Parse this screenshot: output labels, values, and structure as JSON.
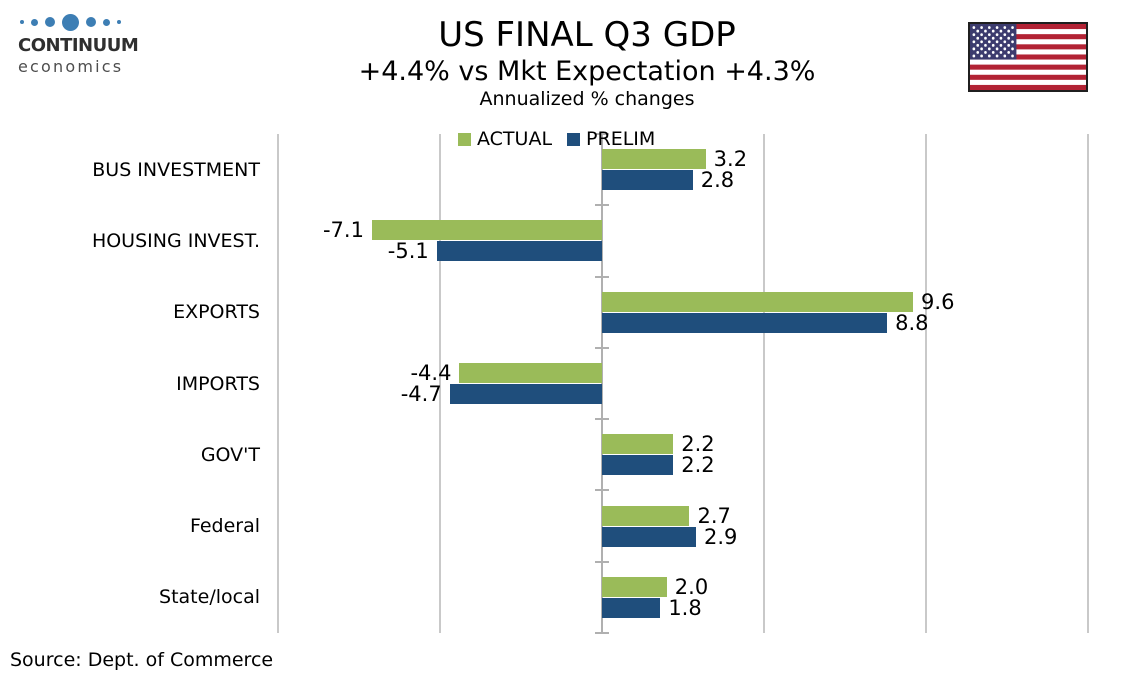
{
  "logo": {
    "brand": "CONTINUUM",
    "subtitle": "economics",
    "dot_color": "#3D7EB4"
  },
  "header": {
    "title": "US FINAL Q3 GDP",
    "subtitle": "+4.4% vs Mkt Expectation +4.3%",
    "note": "Annualized % changes"
  },
  "flag": {
    "name": "us-flag",
    "red": "#B22234",
    "canton_blue": "#3C3B6E",
    "white": "#FFFFFF"
  },
  "source": "Source: Dept. of Commerce",
  "chart_data": {
    "type": "bar",
    "orientation": "horizontal",
    "categories": [
      "BUS INVESTMENT",
      "HOUSING INVEST.",
      "EXPORTS",
      "IMPORTS",
      "GOV'T",
      "Federal",
      "State/local"
    ],
    "series": [
      {
        "name": "ACTUAL",
        "color": "#9ABB59",
        "values": [
          3.2,
          -7.1,
          9.6,
          -4.4,
          2.2,
          2.7,
          2.0
        ]
      },
      {
        "name": "PRELIM",
        "color": "#1F4E7C",
        "values": [
          2.8,
          -5.1,
          8.8,
          -4.7,
          2.2,
          2.9,
          1.8
        ]
      }
    ],
    "value_labels": true,
    "value_label_decimals": 1,
    "xlim": [
      -10,
      15
    ],
    "grid": true,
    "gridline_interval": 5,
    "grid_color": "#C9C9C9",
    "axis_color": "#B0B0B0",
    "legend_position": "top"
  }
}
